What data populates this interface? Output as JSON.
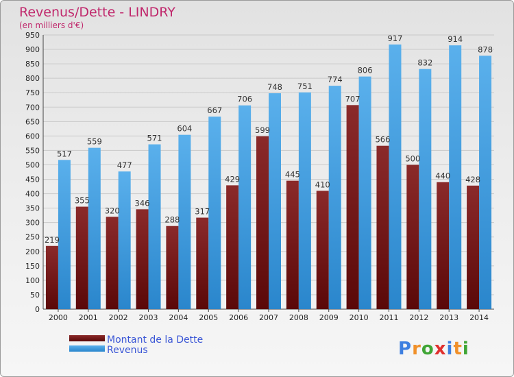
{
  "chart_data": {
    "type": "bar",
    "title": "Revenus/Dette - LINDRY",
    "subtitle": "(en milliers d'€)",
    "categories": [
      "2000",
      "2001",
      "2002",
      "2003",
      "2004",
      "2005",
      "2006",
      "2007",
      "2008",
      "2009",
      "2010",
      "2011",
      "2012",
      "2013",
      "2014"
    ],
    "series": [
      {
        "name": "Montant de la Dette",
        "color": "#7a1a1a",
        "values": [
          219,
          355,
          320,
          346,
          288,
          317,
          429,
          599,
          445,
          410,
          707,
          566,
          500,
          440,
          428
        ]
      },
      {
        "name": "Revenus",
        "color": "#3f9be0",
        "values": [
          517,
          559,
          477,
          571,
          604,
          667,
          706,
          748,
          751,
          774,
          806,
          917,
          832,
          914,
          878
        ]
      }
    ],
    "ylim": [
      0,
      950
    ],
    "yticks": [
      0,
      50,
      100,
      150,
      200,
      250,
      300,
      350,
      400,
      450,
      500,
      550,
      600,
      650,
      700,
      750,
      800,
      850,
      900,
      950
    ],
    "grid": true,
    "legend_position": "bottom-left"
  },
  "logo": {
    "text": "Proxiti",
    "letters": [
      "P",
      "r",
      "o",
      "x",
      "i",
      "t",
      "i"
    ],
    "colors": [
      "#3d7fe0",
      "#f0902a",
      "#3fa535",
      "#e0302e",
      "#3d7fe0",
      "#f0902a",
      "#3fa535"
    ]
  }
}
